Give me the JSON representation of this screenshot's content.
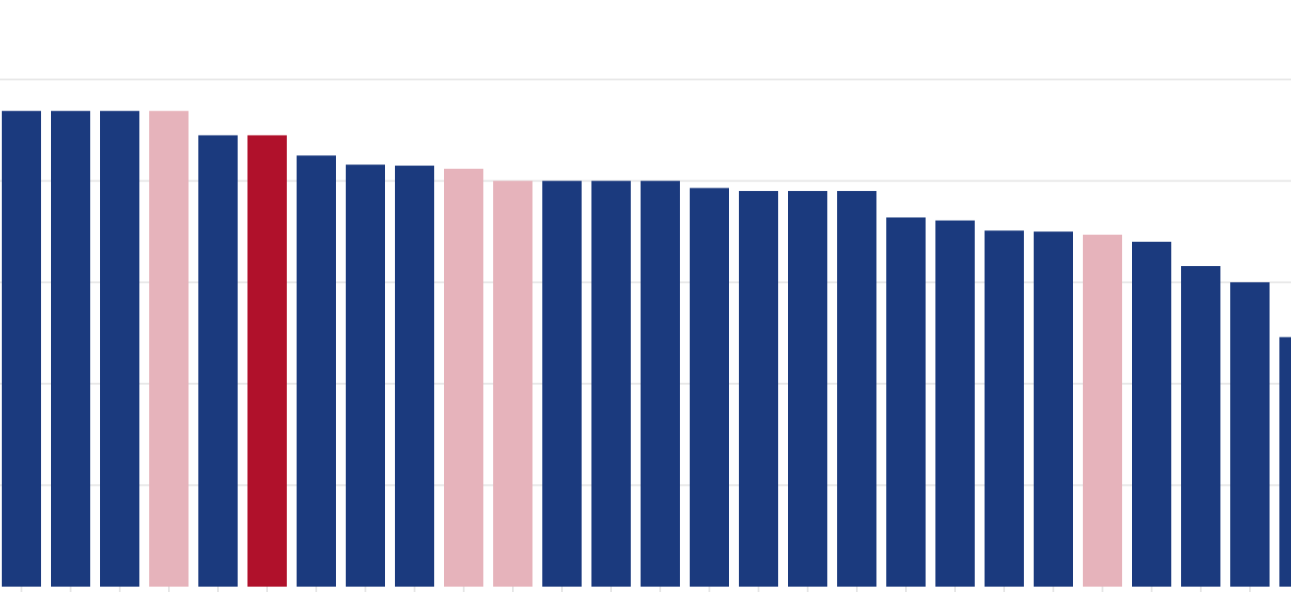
{
  "chart_data": {
    "type": "bar",
    "categories": [
      null,
      null,
      null,
      null,
      null,
      null,
      null,
      null,
      null,
      null,
      null,
      null,
      null,
      null,
      null,
      null,
      null,
      null,
      null,
      null,
      null,
      null,
      null,
      null,
      null,
      null,
      null
    ],
    "values": [
      4.69,
      4.69,
      4.69,
      4.69,
      4.45,
      4.45,
      4.25,
      4.16,
      4.15,
      4.12,
      4.0,
      4.0,
      4.0,
      4.0,
      3.93,
      3.9,
      3.9,
      3.9,
      3.64,
      3.61,
      3.51,
      3.5,
      3.47,
      3.4,
      3.16,
      3.0,
      2.46
    ],
    "colors": [
      "#1b3a7e",
      "#1b3a7e",
      "#1b3a7e",
      "#e6b3bb",
      "#1b3a7e",
      "#b0112b",
      "#1b3a7e",
      "#1b3a7e",
      "#1b3a7e",
      "#e6b3bb",
      "#e6b3bb",
      "#1b3a7e",
      "#1b3a7e",
      "#1b3a7e",
      "#1b3a7e",
      "#1b3a7e",
      "#1b3a7e",
      "#1b3a7e",
      "#1b3a7e",
      "#1b3a7e",
      "#1b3a7e",
      "#1b3a7e",
      "#e6b3bb",
      "#1b3a7e",
      "#1b3a7e",
      "#1b3a7e",
      "#1b3a7e"
    ],
    "ylim": [
      0,
      5
    ],
    "yticks": [
      1,
      2,
      3,
      4,
      5
    ],
    "grid": true
  }
}
